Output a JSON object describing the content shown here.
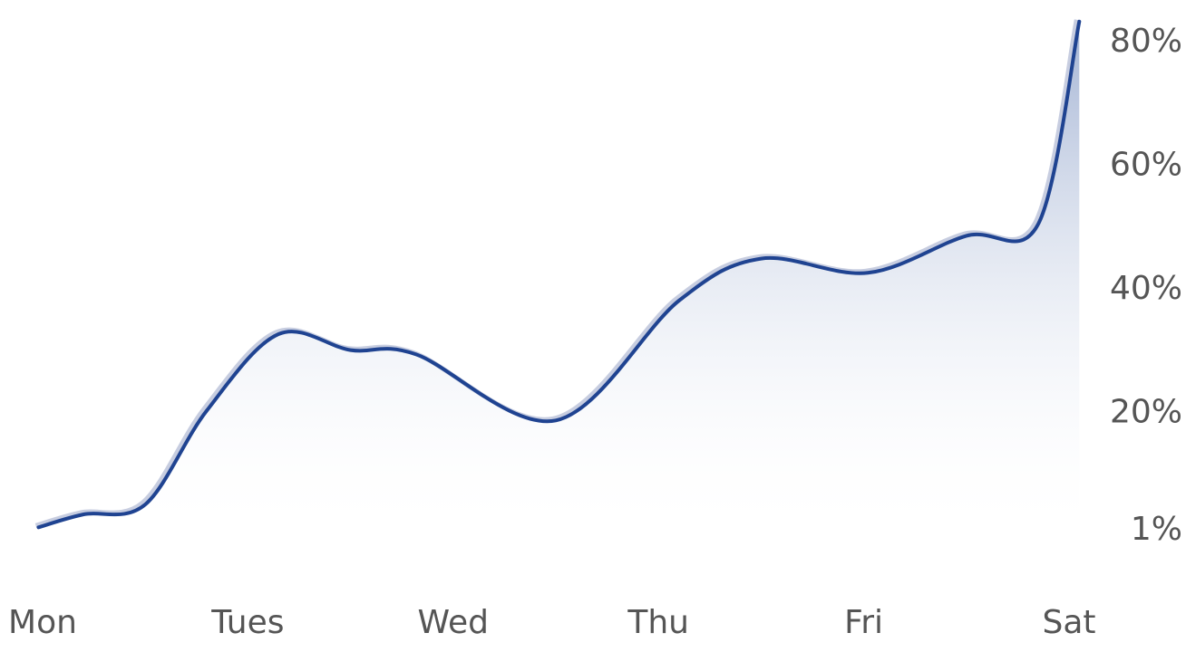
{
  "chart_data": {
    "type": "area",
    "x": [
      "Mon",
      "Tues",
      "Wed",
      "Thu",
      "Fri",
      "Sat"
    ],
    "y_tick_labels": [
      "80%",
      "60%",
      "40%",
      "20%",
      "1%"
    ],
    "y_ticks": [
      80,
      60,
      40,
      20,
      1
    ],
    "ylim": [
      1,
      83
    ],
    "series": [
      {
        "x": [
          -0.02,
          0.2,
          0.5,
          0.8,
          1.15,
          1.5,
          1.82,
          2.5,
          3.1,
          3.5,
          4.02,
          4.5,
          4.85,
          5.05
        ],
        "values": [
          1.1,
          3.2,
          4.8,
          20,
          32.4,
          29.8,
          29.1,
          18.4,
          37.8,
          44.6,
          42.3,
          48.3,
          50.2,
          83
        ]
      }
    ],
    "grid": false,
    "legend": "none",
    "colors": {
      "line": "#1f4391",
      "fill_top": "#93a6cc",
      "fill_bottom": "#ffffff",
      "text": "#555555"
    }
  }
}
